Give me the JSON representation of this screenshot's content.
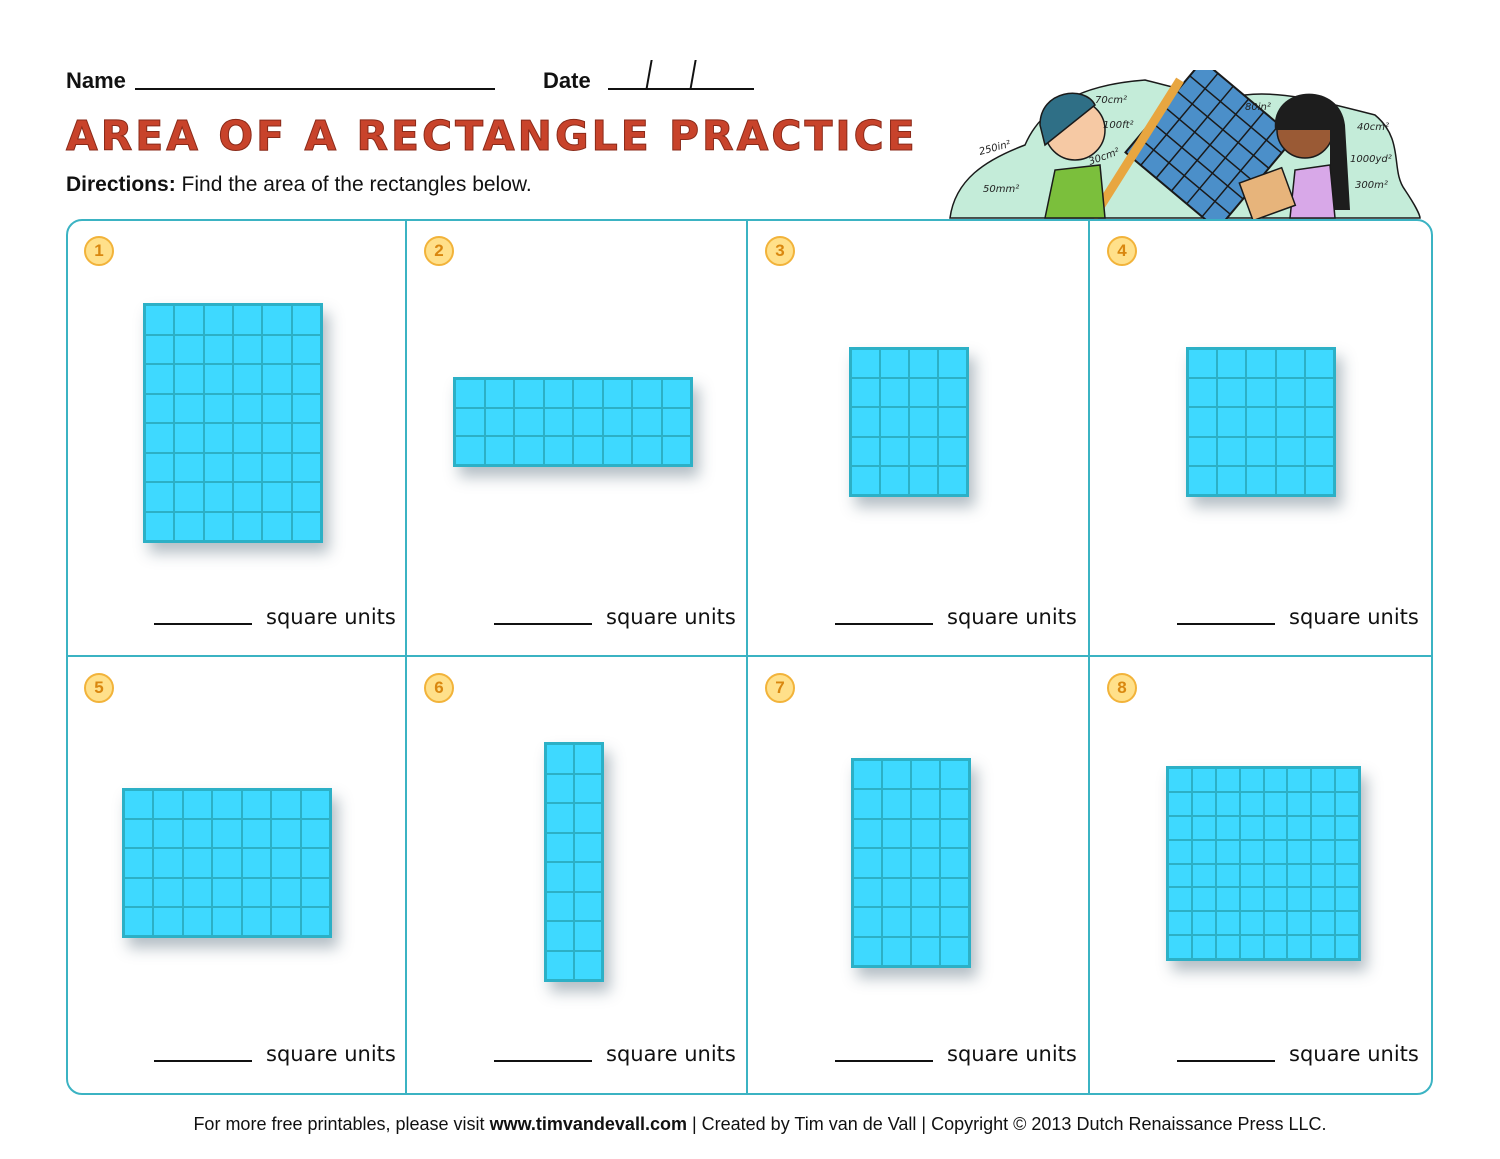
{
  "header": {
    "name_label": "Name",
    "date_label": "Date",
    "title": "AREA OF A RECTANGLE PRACTICE",
    "directions_bold": "Directions:",
    "directions_text": " Find the area of the rectangles below."
  },
  "illustration": {
    "labels": [
      "70cm²",
      "100ft²",
      "250in²",
      "30cm²",
      "50mm²",
      "80in²",
      "40cm²",
      "1000yd²",
      "300m²"
    ]
  },
  "colors": {
    "title": "#c8432b",
    "border": "#3bb3c3",
    "grid_fill": "#3ed9ff",
    "grid_line": "#2cb0c6",
    "badge": "#ffe08a"
  },
  "problems": [
    {
      "number": "1",
      "cols": 6,
      "rows": 8,
      "answer_label": "square units"
    },
    {
      "number": "2",
      "cols": 8,
      "rows": 3,
      "answer_label": "square units"
    },
    {
      "number": "3",
      "cols": 4,
      "rows": 5,
      "answer_label": "square units"
    },
    {
      "number": "4",
      "cols": 5,
      "rows": 5,
      "answer_label": "square units"
    },
    {
      "number": "5",
      "cols": 7,
      "rows": 5,
      "answer_label": "square units"
    },
    {
      "number": "6",
      "cols": 2,
      "rows": 8,
      "answer_label": "square units"
    },
    {
      "number": "7",
      "cols": 4,
      "rows": 7,
      "answer_label": "square units"
    },
    {
      "number": "8",
      "cols": 8,
      "rows": 8,
      "answer_label": "square units"
    }
  ],
  "footer": {
    "prefix": "For more free printables, please visit ",
    "site": "www.timvandevall.com",
    "suffix": " | Created by Tim van de Vall | Copyright © 2013 Dutch Renaissance Press LLC."
  }
}
